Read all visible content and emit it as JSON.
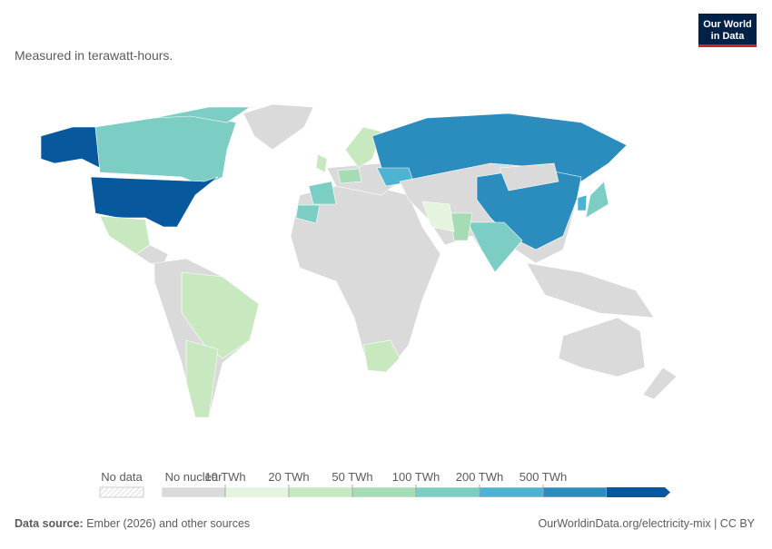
{
  "subtitle": "Measured in terawatt-hours.",
  "logo": {
    "line1": "Our World",
    "line2": "in Data"
  },
  "legend": {
    "no_data": "No data",
    "no_nuclear": "No nuclear",
    "thresholds": [
      "10 TWh",
      "20 TWh",
      "50 TWh",
      "100 TWh",
      "200 TWh",
      "500 TWh"
    ],
    "colors": [
      "#dadada",
      "#e4f4de",
      "#c8e9c0",
      "#a5dbb5",
      "#7ccdc4",
      "#4eb3d3",
      "#2b8cbe",
      "#08589e"
    ]
  },
  "footer": {
    "source_label": "Data source:",
    "source": "Ember (2026) and other sources",
    "url": "OurWorldinData.org/electricity-mix | CC BY"
  }
}
